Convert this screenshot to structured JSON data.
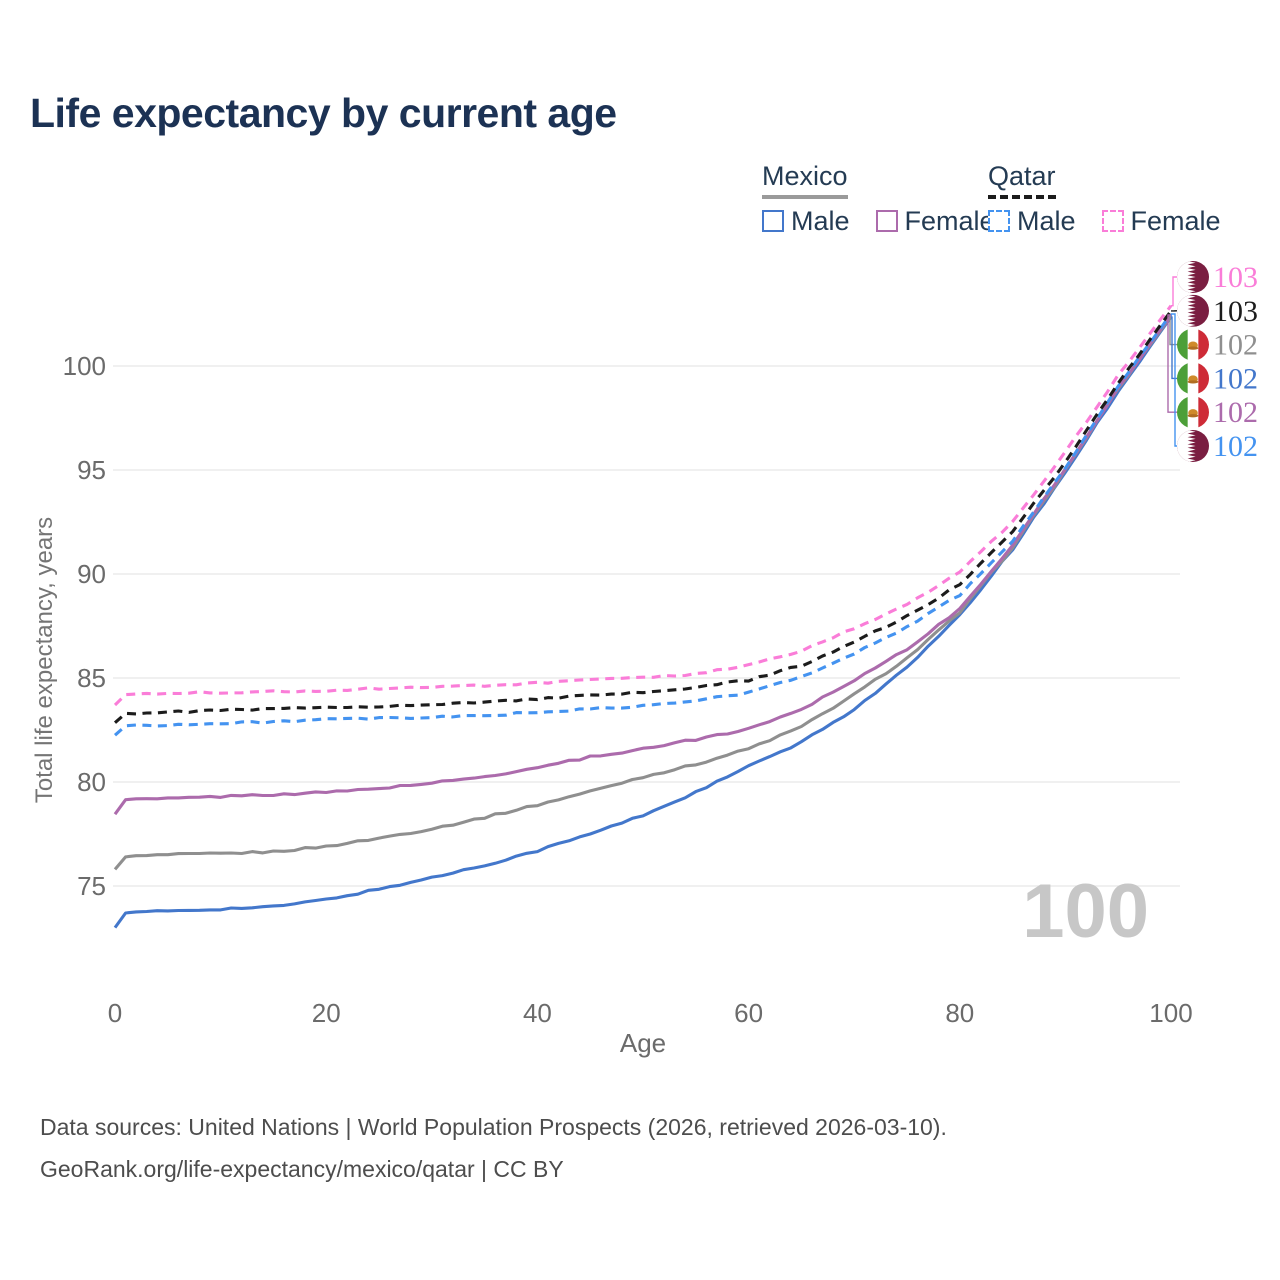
{
  "title": "Life expectancy by current age",
  "watermark": "100",
  "legend": {
    "groups": [
      {
        "country": "Mexico",
        "line_style": "solid",
        "underline_color": "#9a9a9a",
        "items": [
          {
            "label": "Male",
            "color": "#4377cb"
          },
          {
            "label": "Female",
            "color": "#ac6bac"
          }
        ]
      },
      {
        "country": "Qatar",
        "line_style": "dashed",
        "underline_color": "#1c1c1c",
        "items": [
          {
            "label": "Male",
            "color": "#4493f0"
          },
          {
            "label": "Female",
            "color": "#fa7dd8"
          }
        ]
      }
    ]
  },
  "chart_data": {
    "type": "line",
    "title": "Life expectancy by current age",
    "xlabel": "Age",
    "ylabel": "Total life expectancy, years",
    "xticks": [
      0,
      20,
      40,
      60,
      80,
      100
    ],
    "yticks": [
      75,
      80,
      85,
      90,
      95,
      100
    ],
    "xlim": [
      0,
      100
    ],
    "ylim": [
      72,
      104
    ],
    "grid": "horizontal",
    "legend_position": "top-right",
    "x": [
      0,
      1,
      5,
      10,
      15,
      20,
      25,
      30,
      35,
      40,
      45,
      50,
      55,
      60,
      65,
      70,
      75,
      80,
      85,
      90,
      95,
      100
    ],
    "series": [
      {
        "key": "mexico_male",
        "name": "Mexico Male",
        "country": "Mexico",
        "sex": "Male",
        "color": "#4377cb",
        "dashed": false,
        "values": [
          73.0,
          73.7,
          73.8,
          73.9,
          74.0,
          74.35,
          74.85,
          75.4,
          76.0,
          76.7,
          77.5,
          78.4,
          79.5,
          80.75,
          81.9,
          83.5,
          85.5,
          88.0,
          91.2,
          94.9,
          98.8,
          102.35
        ]
      },
      {
        "key": "mexico_total",
        "name": "Mexico Total",
        "country": "Mexico",
        "sex": "Both",
        "color": "#8f8f8f",
        "dashed": false,
        "values": [
          75.8,
          76.4,
          76.5,
          76.55,
          76.65,
          76.9,
          77.3,
          77.75,
          78.3,
          78.9,
          79.55,
          80.25,
          80.85,
          81.6,
          82.65,
          84.2,
          85.95,
          88.15,
          91.3,
          95.0,
          98.9,
          102.4
        ]
      },
      {
        "key": "mexico_female",
        "name": "Mexico Female",
        "country": "Mexico",
        "sex": "Female",
        "color": "#ac6bac",
        "dashed": false,
        "values": [
          78.45,
          79.15,
          79.2,
          79.3,
          79.4,
          79.5,
          79.7,
          79.95,
          80.25,
          80.7,
          81.2,
          81.6,
          82.05,
          82.55,
          83.5,
          84.9,
          86.4,
          88.3,
          91.4,
          95.05,
          98.95,
          102.45
        ]
      },
      {
        "key": "qatar_male",
        "name": "Qatar Male",
        "country": "Qatar",
        "sex": "Male",
        "color": "#4493f0",
        "dashed": true,
        "values": [
          82.25,
          82.7,
          82.75,
          82.8,
          82.9,
          83.0,
          83.05,
          83.1,
          83.2,
          83.35,
          83.5,
          83.65,
          83.9,
          84.3,
          85.05,
          86.2,
          87.45,
          89.0,
          91.6,
          95.1,
          99.0,
          102.5
        ]
      },
      {
        "key": "qatar_total",
        "name": "Qatar Total",
        "country": "Qatar",
        "sex": "Both",
        "color": "#1c1c1c",
        "dashed": true,
        "values": [
          82.85,
          83.3,
          83.35,
          83.45,
          83.5,
          83.6,
          83.65,
          83.7,
          83.85,
          84.0,
          84.15,
          84.3,
          84.55,
          84.9,
          85.6,
          86.75,
          87.95,
          89.5,
          92.0,
          95.4,
          99.2,
          102.65
        ]
      },
      {
        "key": "qatar_female",
        "name": "Qatar Female",
        "country": "Qatar",
        "sex": "Female",
        "color": "#fa7dd8",
        "dashed": true,
        "values": [
          83.7,
          84.2,
          84.3,
          84.3,
          84.35,
          84.4,
          84.5,
          84.55,
          84.65,
          84.75,
          84.9,
          85.0,
          85.2,
          85.6,
          86.3,
          87.4,
          88.5,
          90.1,
          92.5,
          95.85,
          99.55,
          102.9
        ]
      }
    ],
    "end_labels": [
      {
        "value": "103",
        "flag": "qatar",
        "series": "qatar_female"
      },
      {
        "value": "103",
        "flag": "qatar",
        "series": "qatar_total"
      },
      {
        "value": "102",
        "flag": "mexico",
        "series": "mexico_total"
      },
      {
        "value": "102",
        "flag": "mexico",
        "series": "mexico_male"
      },
      {
        "value": "102",
        "flag": "mexico",
        "series": "mexico_female"
      },
      {
        "value": "102",
        "flag": "qatar",
        "series": "qatar_male"
      }
    ]
  },
  "footer": {
    "line1": "Data sources: United Nations | World Population Prospects (2026, retrieved 2026-03-10).",
    "line2": "GeoRank.org/life-expectancy/mexico/qatar | CC BY"
  }
}
